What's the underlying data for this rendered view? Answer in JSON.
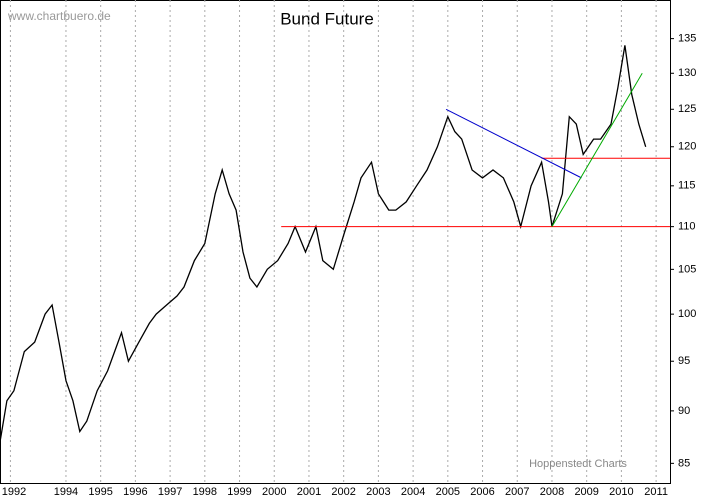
{
  "chart_data": {
    "type": "line",
    "title": "Bund Future",
    "annotations": [
      "www.chartbuero.de",
      "Hoppenstedt Charts"
    ],
    "color": "#000000",
    "x": [
      1992.6,
      1992.8,
      1993.0,
      1993.3,
      1993.6,
      1993.9,
      1994.1,
      1994.3,
      1994.5,
      1994.7,
      1994.9,
      1995.1,
      1995.4,
      1995.7,
      1995.9,
      1996.1,
      1996.3,
      1996.6,
      1996.9,
      1997.1,
      1997.4,
      1997.7,
      1997.9,
      1998.2,
      1998.5,
      1998.8,
      1999.0,
      1999.2,
      1999.4,
      1999.6,
      1999.8,
      2000.0,
      2000.3,
      2000.6,
      2000.9,
      2001.1,
      2001.4,
      2001.7,
      2001.9,
      2002.2,
      2002.5,
      2002.8,
      2003.0,
      2003.3,
      2003.5,
      2003.8,
      2004.0,
      2004.3,
      2004.6,
      2004.9,
      2005.2,
      2005.5,
      2005.7,
      2005.9,
      2006.2,
      2006.5,
      2006.8,
      2007.1,
      2007.4,
      2007.6,
      2007.9,
      2008.2,
      2008.4,
      2008.5,
      2008.8,
      2009.0,
      2009.2,
      2009.4,
      2009.7,
      2009.9,
      2010.2,
      2010.4,
      2010.6,
      2010.8,
      2011.0,
      2011.2
    ],
    "values": [
      87,
      91,
      92,
      96,
      97,
      100,
      101,
      97,
      93,
      91,
      88,
      89,
      92,
      94,
      96,
      98,
      95,
      97,
      99,
      100,
      101,
      102,
      103,
      106,
      108,
      114,
      117,
      114,
      112,
      107,
      104,
      103,
      105,
      106,
      108,
      110,
      107,
      110,
      106,
      105,
      109,
      113,
      116,
      118,
      114,
      112,
      112,
      113,
      115,
      117,
      120,
      124,
      122,
      121,
      117,
      116,
      117,
      116,
      113,
      110,
      115,
      118,
      113,
      110,
      114,
      124,
      123,
      119,
      121,
      121,
      123,
      128,
      134,
      127,
      123,
      120
    ],
    "trendlines": [
      {
        "x": [
          2000.7,
          2011.9
        ],
        "values": [
          110,
          110
        ],
        "color": "#ff0000"
      },
      {
        "x": [
          2008.2,
          2011.9
        ],
        "values": [
          118.5,
          118.5
        ],
        "color": "#ff0000"
      },
      {
        "x": [
          2005.45,
          2009.35
        ],
        "values": [
          125,
          116
        ],
        "color": "#0000cc"
      },
      {
        "x": [
          2008.5,
          2011.1
        ],
        "values": [
          110,
          130
        ],
        "color": "#00aa00"
      }
    ],
    "xlim": [
      1992.6,
      2011.9
    ],
    "xticks": [
      {
        "value": 1992.9,
        "label": "1992"
      },
      {
        "value": 1994.5,
        "label": "1994"
      },
      {
        "value": 1995.5,
        "label": "1995"
      },
      {
        "value": 1996.5,
        "label": "1996"
      },
      {
        "value": 1997.5,
        "label": "1997"
      },
      {
        "value": 1998.5,
        "label": "1998"
      },
      {
        "value": 1999.5,
        "label": "1999"
      },
      {
        "value": 2000.5,
        "label": "2000"
      },
      {
        "value": 2001.5,
        "label": "2001"
      },
      {
        "value": 2002.5,
        "label": "2002"
      },
      {
        "value": 2003.5,
        "label": "2003"
      },
      {
        "value": 2004.5,
        "label": "2004"
      },
      {
        "value": 2005.5,
        "label": "2005"
      },
      {
        "value": 2006.5,
        "label": "2006"
      },
      {
        "value": 2007.5,
        "label": "2007"
      },
      {
        "value": 2008.5,
        "label": "2008"
      },
      {
        "value": 2009.5,
        "label": "2009"
      },
      {
        "value": 2010.5,
        "label": "2010"
      },
      {
        "value": 2011.5,
        "label": "2011"
      }
    ],
    "ylim": [
      83.2,
      140.8
    ],
    "yticks": [
      85,
      90,
      95,
      100,
      105,
      110,
      115,
      120,
      125,
      130,
      135
    ],
    "log_scale": true,
    "grid": "x"
  }
}
